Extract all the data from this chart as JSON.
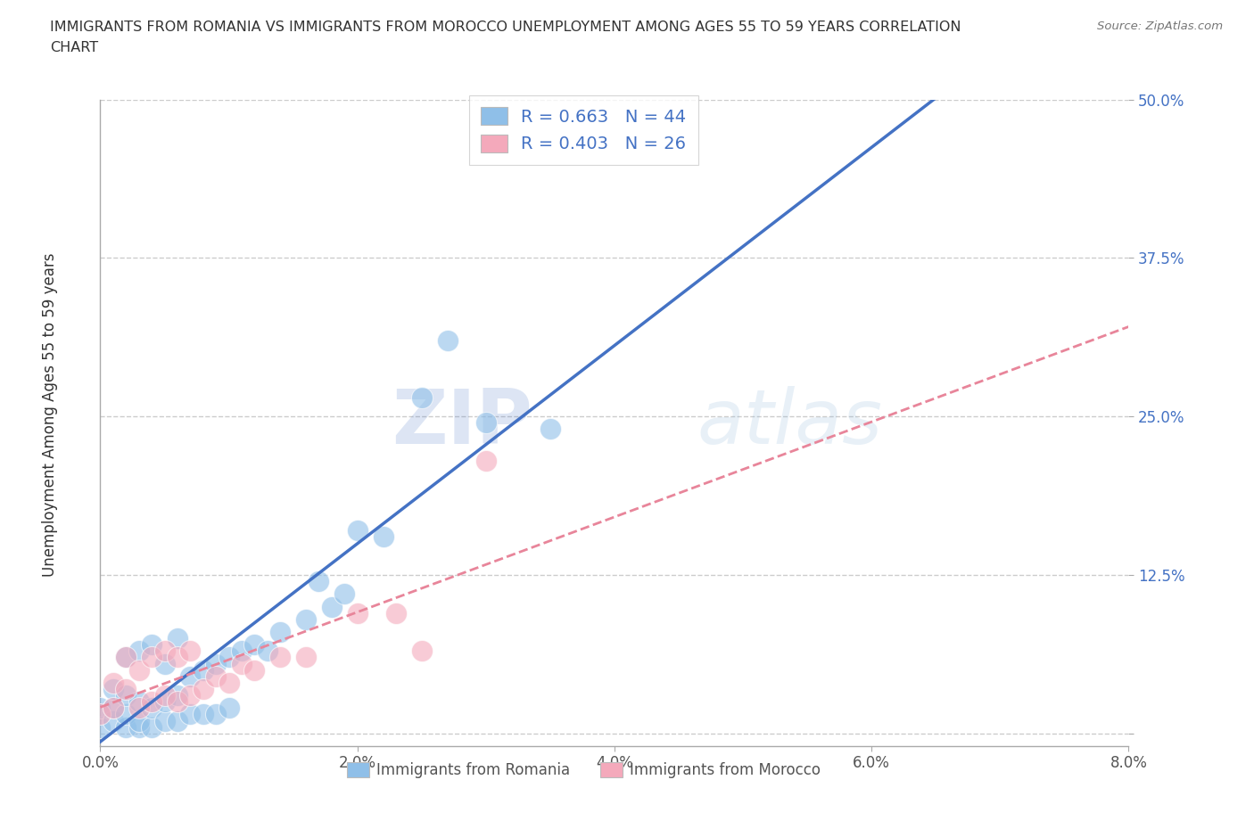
{
  "title_line1": "IMMIGRANTS FROM ROMANIA VS IMMIGRANTS FROM MOROCCO UNEMPLOYMENT AMONG AGES 55 TO 59 YEARS CORRELATION",
  "title_line2": "CHART",
  "source": "Source: ZipAtlas.com",
  "ylabel_label": "Unemployment Among Ages 55 to 59 years",
  "xlim": [
    0.0,
    0.08
  ],
  "ylim": [
    -0.01,
    0.5
  ],
  "xticks": [
    0.0,
    0.02,
    0.04,
    0.06,
    0.08
  ],
  "xtick_labels": [
    "0.0%",
    "2.0%",
    "4.0%",
    "6.0%",
    "8.0%"
  ],
  "yticks": [
    0.0,
    0.125,
    0.25,
    0.375,
    0.5
  ],
  "ytick_labels": [
    "",
    "12.5%",
    "25.0%",
    "37.5%",
    "50.0%"
  ],
  "romania_color": "#8fbfe8",
  "morocco_color": "#f4a9bb",
  "romania_line_color": "#4472c4",
  "morocco_line_color": "#e8859a",
  "text_blue": "#4472c4",
  "romania_R": "0.663",
  "romania_N": "44",
  "morocco_R": "0.403",
  "morocco_N": "26",
  "watermark_zip": "ZIP",
  "watermark_atlas": "atlas",
  "background_color": "#ffffff",
  "grid_color": "#cccccc",
  "romania_scatter_x": [
    0.0,
    0.0,
    0.001,
    0.001,
    0.001,
    0.002,
    0.002,
    0.002,
    0.002,
    0.003,
    0.003,
    0.003,
    0.003,
    0.004,
    0.004,
    0.004,
    0.005,
    0.005,
    0.005,
    0.006,
    0.006,
    0.006,
    0.007,
    0.007,
    0.008,
    0.008,
    0.009,
    0.009,
    0.01,
    0.01,
    0.011,
    0.012,
    0.013,
    0.014,
    0.016,
    0.017,
    0.018,
    0.019,
    0.02,
    0.022,
    0.025,
    0.027,
    0.03,
    0.035
  ],
  "romania_scatter_y": [
    0.005,
    0.02,
    0.01,
    0.02,
    0.035,
    0.005,
    0.015,
    0.03,
    0.06,
    0.005,
    0.01,
    0.025,
    0.065,
    0.005,
    0.02,
    0.07,
    0.01,
    0.025,
    0.055,
    0.01,
    0.03,
    0.075,
    0.015,
    0.045,
    0.015,
    0.05,
    0.015,
    0.055,
    0.02,
    0.06,
    0.065,
    0.07,
    0.065,
    0.08,
    0.09,
    0.12,
    0.1,
    0.11,
    0.16,
    0.155,
    0.265,
    0.31,
    0.245,
    0.24
  ],
  "morocco_scatter_x": [
    0.0,
    0.001,
    0.001,
    0.002,
    0.002,
    0.003,
    0.003,
    0.004,
    0.004,
    0.005,
    0.005,
    0.006,
    0.006,
    0.007,
    0.007,
    0.008,
    0.009,
    0.01,
    0.011,
    0.012,
    0.014,
    0.016,
    0.02,
    0.023,
    0.025,
    0.03
  ],
  "morocco_scatter_y": [
    0.015,
    0.02,
    0.04,
    0.035,
    0.06,
    0.02,
    0.05,
    0.025,
    0.06,
    0.03,
    0.065,
    0.025,
    0.06,
    0.03,
    0.065,
    0.035,
    0.045,
    0.04,
    0.055,
    0.05,
    0.06,
    0.06,
    0.095,
    0.095,
    0.065,
    0.215
  ]
}
